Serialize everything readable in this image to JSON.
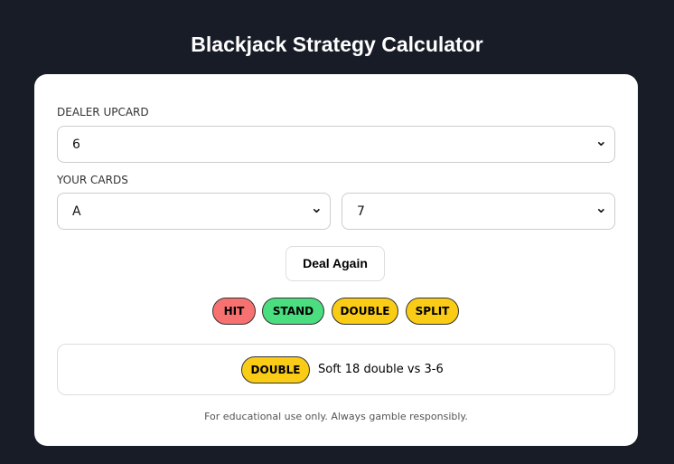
{
  "header": {
    "title": "Blackjack Strategy Calculator"
  },
  "dealer": {
    "label": "DEALER UPCARD",
    "value": "6"
  },
  "cards": {
    "label": "YOUR CARDS",
    "card1": "A",
    "card2": "7"
  },
  "deal_button": "Deal Again",
  "actions": [
    "HIT",
    "STAND",
    "DOUBLE",
    "SPLIT"
  ],
  "result": {
    "action": "DOUBLE",
    "text": "Soft 18 double vs 3-6"
  },
  "footer": "For educational use only. Always gamble responsibly."
}
